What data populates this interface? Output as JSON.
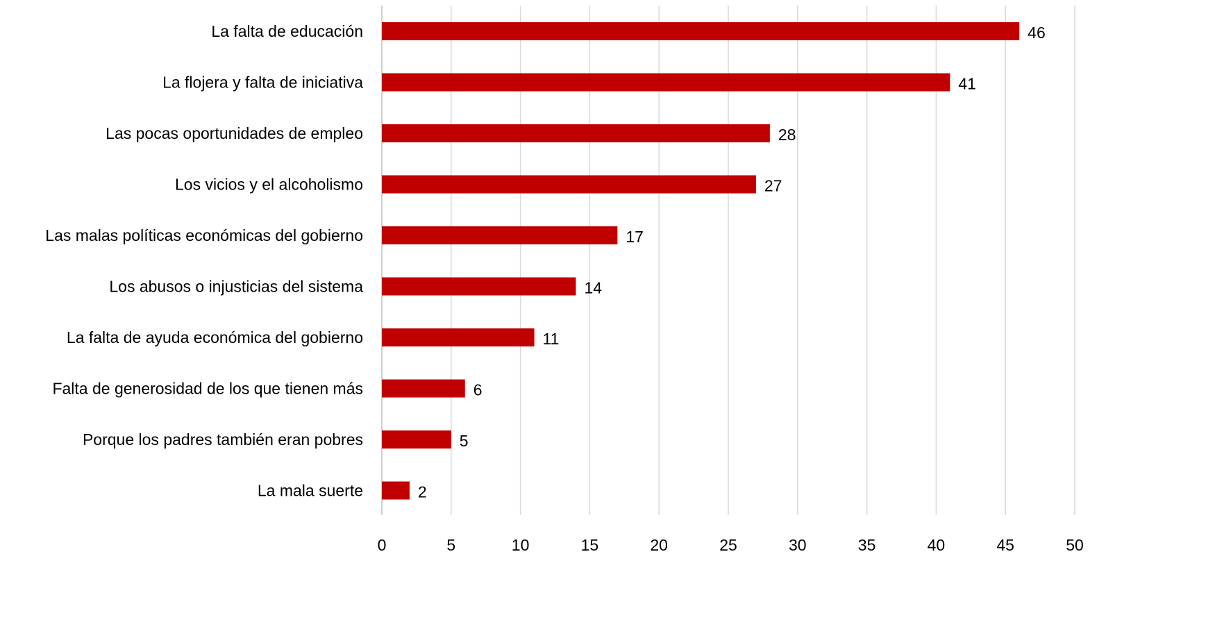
{
  "chart_data": {
    "type": "bar",
    "orientation": "horizontal",
    "categories": [
      "La falta de educación",
      "La flojera y falta de iniciativa",
      "Las pocas oportunidades de empleo",
      "Los vicios y el alcoholismo",
      "Las malas políticas económicas del gobierno",
      "Los abusos o injusticias del sistema",
      "La falta de ayuda económica del gobierno",
      "Falta de generosidad de los que tienen más",
      "Porque los padres también eran pobres",
      "La mala suerte"
    ],
    "values": [
      46,
      41,
      28,
      27,
      17,
      14,
      11,
      6,
      5,
      2
    ],
    "data_labels": [
      "46",
      "41",
      "28",
      "27",
      "17",
      "14",
      "11",
      "6",
      "5",
      "2"
    ],
    "xlim": [
      0,
      50
    ],
    "xticks": [
      0,
      5,
      10,
      15,
      20,
      25,
      30,
      35,
      40,
      45,
      50
    ],
    "xtick_labels": [
      "0",
      "5",
      "10",
      "15",
      "20",
      "25",
      "30",
      "35",
      "40",
      "45",
      "50"
    ],
    "grid": "vertical",
    "legend": "none",
    "title": "",
    "xlabel": "",
    "ylabel": "",
    "colors": {
      "bar": "#C00000",
      "grid": "#D9D9D9",
      "axis": "#BFBFBF",
      "text": "#000000"
    }
  }
}
